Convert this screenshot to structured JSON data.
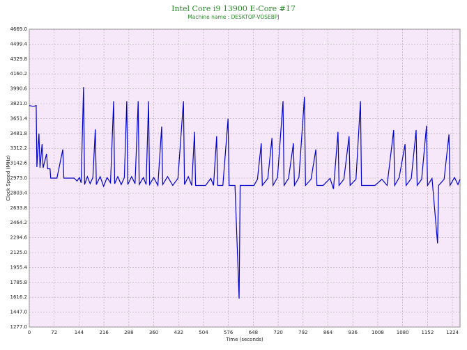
{
  "chart_data": {
    "type": "line",
    "title": "Intel Core i9 13900 E-Core #17",
    "subtitle": "Machine name : DESKTOP-VOSEBPJ",
    "x_label": "Time (seconds)",
    "y_label": "Clock Speed (MHz)",
    "xlim": [
      0,
      1246
    ],
    "ylim": [
      1277,
      4669
    ],
    "xticks": [
      0,
      72,
      144,
      216,
      288,
      360,
      432,
      504,
      576,
      648,
      720,
      792,
      864,
      936,
      1008,
      1080,
      1152,
      1224
    ],
    "yticks": [
      {
        "value": 1277,
        "label": "1277.0"
      },
      {
        "value": 1447,
        "label": "1447.0"
      },
      1616.2,
      1785.8,
      1955.4,
      {
        "value": 2125,
        "label": "2125.0"
      },
      2294.6,
      2464.2,
      2633.8,
      2803.4,
      {
        "value": 2973,
        "label": "2973.0"
      },
      3142.6,
      3312.2,
      3481.8,
      3651.4,
      {
        "value": 3821,
        "label": "3821.0"
      },
      3990.6,
      4160.2,
      4329.8,
      4499.4,
      {
        "value": 4669,
        "label": "4669.0"
      }
    ],
    "grid": true,
    "series": [
      {
        "name": "E-Core #17",
        "color": "#0000cc",
        "x": [
          0,
          12,
          20,
          22,
          28,
          31,
          37,
          40,
          50,
          53,
          60,
          62,
          80,
          97,
          100,
          130,
          138,
          145,
          150,
          157,
          160,
          168,
          176,
          184,
          191,
          194,
          205,
          215,
          225,
          235,
          244,
          247,
          256,
          266,
          275,
          282,
          285,
          296,
          306,
          315,
          318,
          330,
          338,
          345,
          348,
          360,
          372,
          383,
          386,
          400,
          415,
          430,
          446,
          449,
          460,
          470,
          478,
          481,
          495,
          510,
          525,
          533,
          542,
          545,
          560,
          575,
          578,
          595,
          607,
          610,
          630,
          650,
          660,
          671,
          674,
          690,
          702,
          705,
          718,
          734,
          737,
          750,
          764,
          767,
          780,
          796,
          799,
          815,
          829,
          832,
          850,
          870,
          880,
          893,
          896,
          910,
          925,
          928,
          945,
          958,
          961,
          980,
          1000,
          1020,
          1035,
          1054,
          1057,
          1070,
          1087,
          1090,
          1105,
          1119,
          1122,
          1135,
          1149,
          1152,
          1165,
          1181,
          1184,
          1200,
          1214,
          1217,
          1230,
          1240,
          1246
        ],
        "values": [
          3800,
          3790,
          3800,
          3100,
          3480,
          3090,
          3360,
          3090,
          3250,
          3080,
          3080,
          2973,
          2973,
          3300,
          2973,
          2973,
          2940,
          2980,
          2920,
          4010,
          2900,
          2990,
          2910,
          2980,
          3530,
          2900,
          2990,
          2880,
          2980,
          2920,
          3850,
          2910,
          2990,
          2900,
          2980,
          3850,
          2900,
          2990,
          2910,
          3850,
          2900,
          2980,
          2900,
          3850,
          2900,
          2980,
          2890,
          3560,
          2900,
          2990,
          2890,
          2970,
          3850,
          2900,
          2990,
          2890,
          3500,
          2890,
          2890,
          2890,
          2970,
          2890,
          3450,
          2890,
          2890,
          3650,
          2890,
          2890,
          1600,
          2890,
          2890,
          2890,
          2960,
          3370,
          2890,
          2970,
          3430,
          2890,
          2980,
          3850,
          2890,
          2970,
          3370,
          2890,
          2980,
          3900,
          2890,
          2960,
          3300,
          2890,
          2890,
          2970,
          2850,
          3500,
          2890,
          2960,
          3450,
          2890,
          2960,
          3850,
          2890,
          2890,
          2890,
          2960,
          2890,
          3520,
          2890,
          2980,
          3360,
          2890,
          2970,
          3520,
          2890,
          2960,
          3570,
          2890,
          2970,
          2230,
          2890,
          2960,
          3470,
          2890,
          2980,
          2900,
          2960
        ]
      }
    ]
  }
}
